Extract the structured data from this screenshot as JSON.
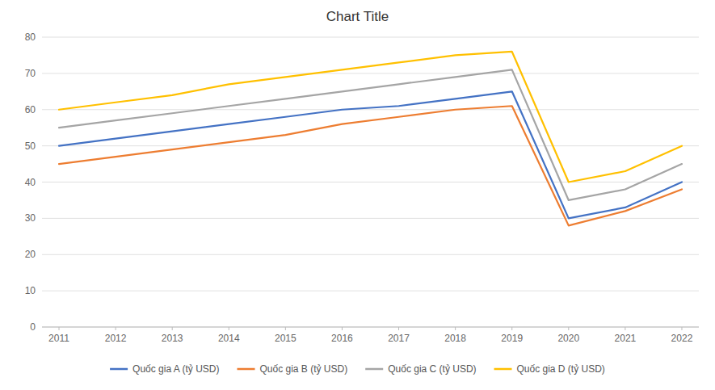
{
  "chart_data": {
    "type": "line",
    "title": "Chart Title",
    "x": [
      2011,
      2012,
      2013,
      2014,
      2015,
      2016,
      2017,
      2018,
      2019,
      2020,
      2021,
      2022
    ],
    "series": [
      {
        "name": "Quốc gia A (tỷ USD)",
        "color": "#4472C4",
        "values": [
          50,
          52,
          54,
          56,
          58,
          60,
          61,
          63,
          65,
          30,
          33,
          40
        ]
      },
      {
        "name": "Quốc gia B (tỷ USD)",
        "color": "#ED7D31",
        "values": [
          45,
          47,
          49,
          51,
          53,
          56,
          58,
          60,
          61,
          28,
          32,
          38
        ]
      },
      {
        "name": "Quốc gia C (tỷ USD)",
        "color": "#A5A5A5",
        "values": [
          55,
          57,
          59,
          61,
          63,
          65,
          67,
          69,
          71,
          35,
          38,
          45
        ]
      },
      {
        "name": "Quốc gia D (tỷ USD)",
        "color": "#FFC000",
        "values": [
          60,
          62,
          64,
          67,
          69,
          71,
          73,
          75,
          76,
          40,
          43,
          50
        ]
      }
    ],
    "xlim": [
      2010.7,
      2022.3
    ],
    "xticks": [
      2011,
      2012,
      2013,
      2014,
      2015,
      2016,
      2017,
      2018,
      2019,
      2020,
      2021,
      2022
    ],
    "ylim": [
      0,
      80
    ],
    "yticks": [
      0,
      10,
      20,
      30,
      40,
      50,
      60,
      70,
      80
    ],
    "grid": true,
    "legend": "bottom"
  }
}
